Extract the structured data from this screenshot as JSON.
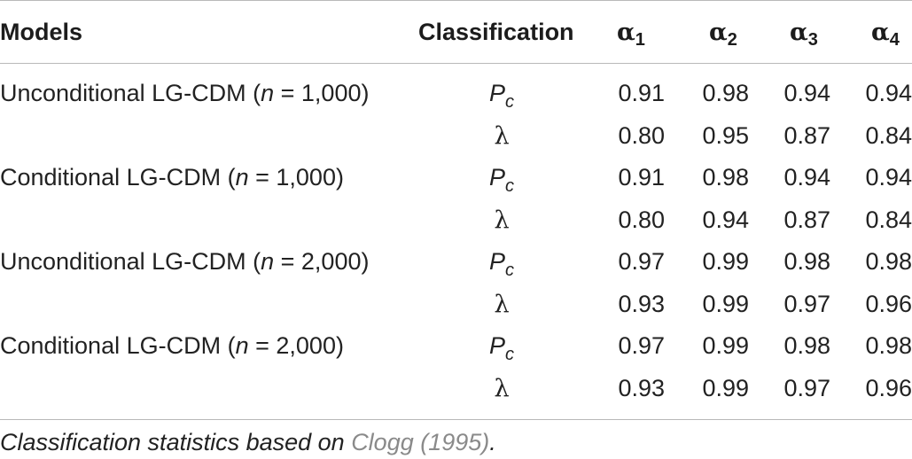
{
  "header": {
    "models": "Models",
    "classification": "Classification",
    "alpha_symbol": "α",
    "alpha_subs": [
      "1",
      "2",
      "3",
      "4"
    ]
  },
  "rows": [
    {
      "model_prefix": "Unconditional LG-CDM (",
      "n_var": "n",
      "model_suffix": " = 1,000)",
      "class_main": "P",
      "class_sub": "c",
      "values": [
        "0.91",
        "0.98",
        "0.94",
        "0.94"
      ]
    },
    {
      "model_prefix": "",
      "n_var": "",
      "model_suffix": "",
      "class_main": "λ",
      "class_sub": "",
      "values": [
        "0.80",
        "0.95",
        "0.87",
        "0.84"
      ]
    },
    {
      "model_prefix": "Conditional LG-CDM (",
      "n_var": "n",
      "model_suffix": " = 1,000)",
      "class_main": "P",
      "class_sub": "c",
      "values": [
        "0.91",
        "0.98",
        "0.94",
        "0.94"
      ]
    },
    {
      "model_prefix": "",
      "n_var": "",
      "model_suffix": "",
      "class_main": "λ",
      "class_sub": "",
      "values": [
        "0.80",
        "0.94",
        "0.87",
        "0.84"
      ]
    },
    {
      "model_prefix": "Unconditional LG-CDM (",
      "n_var": "n",
      "model_suffix": " = 2,000)",
      "class_main": "P",
      "class_sub": "c",
      "values": [
        "0.97",
        "0.99",
        "0.98",
        "0.98"
      ]
    },
    {
      "model_prefix": "",
      "n_var": "",
      "model_suffix": "",
      "class_main": "λ",
      "class_sub": "",
      "values": [
        "0.93",
        "0.99",
        "0.97",
        "0.96"
      ]
    },
    {
      "model_prefix": "Conditional LG-CDM (",
      "n_var": "n",
      "model_suffix": " = 2,000)",
      "class_main": "P",
      "class_sub": "c",
      "values": [
        "0.97",
        "0.99",
        "0.98",
        "0.98"
      ]
    },
    {
      "model_prefix": "",
      "n_var": "",
      "model_suffix": "",
      "class_main": "λ",
      "class_sub": "",
      "values": [
        "0.93",
        "0.99",
        "0.97",
        "0.96"
      ]
    }
  ],
  "footnote": {
    "text": "Classification statistics based on ",
    "reference": "Clogg (1995)",
    "end": "."
  }
}
